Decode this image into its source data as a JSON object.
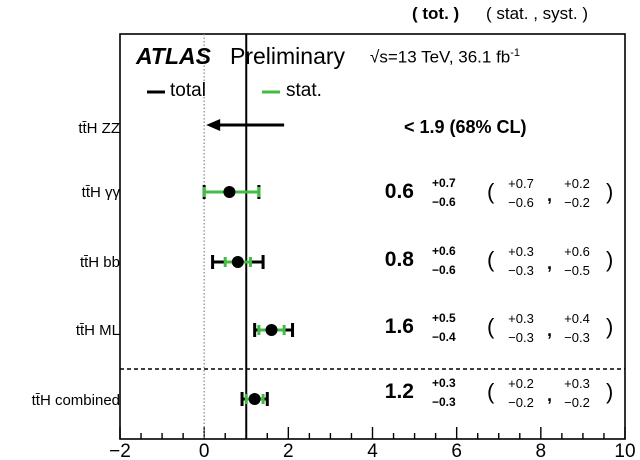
{
  "header": {
    "tot_label": "( tot. )",
    "statsyst_label": "( stat. , syst. )"
  },
  "experiment": {
    "atlas": "ATLAS",
    "status": "Preliminary",
    "sqrt_s": "√s",
    "energy_lumi": "=13 TeV, 36.1 fb",
    "lumi_exp": "-1"
  },
  "legend": {
    "total": "total",
    "stat": "stat."
  },
  "colors": {
    "total": "#000000",
    "stat": "#44bb44"
  },
  "rows": [
    {
      "label": "tt̄H ZZ",
      "limit": "< 1.9 (68% CL)"
    },
    {
      "label": "tt̄H γγ",
      "value": "0.6",
      "tot_up": "+0.7",
      "tot_dn": "−0.6",
      "stat_up": "+0.7",
      "stat_dn": "−0.6",
      "syst_up": "+0.2",
      "syst_dn": "−0.2"
    },
    {
      "label": "tt̄H bb",
      "value": "0.8",
      "tot_up": "+0.6",
      "tot_dn": "−0.6",
      "stat_up": "+0.3",
      "stat_dn": "−0.3",
      "syst_up": "+0.6",
      "syst_dn": "−0.5"
    },
    {
      "label": "tt̄H ML",
      "value": "1.6",
      "tot_up": "+0.5",
      "tot_dn": "−0.4",
      "stat_up": "+0.3",
      "stat_dn": "−0.3",
      "syst_up": "+0.4",
      "syst_dn": "−0.3"
    },
    {
      "label": "tt̄H combined",
      "value": "1.2",
      "tot_up": "+0.3",
      "tot_dn": "−0.3",
      "stat_up": "+0.2",
      "stat_dn": "−0.2",
      "syst_up": "+0.3",
      "syst_dn": "−0.2"
    }
  ],
  "chart_data": {
    "type": "scatter",
    "orientation": "horizontal",
    "categories": [
      "tt̄H ZZ",
      "tt̄H γγ",
      "tt̄H bb",
      "tt̄H ML",
      "tt̄H combined"
    ],
    "xlim": [
      -2,
      10
    ],
    "xticks": [
      "−2",
      "0",
      "2",
      "4",
      "6",
      "8",
      "10"
    ],
    "xtick_values": [
      -2,
      0,
      2,
      4,
      6,
      8,
      10
    ],
    "reference_lines": [
      {
        "x": 0,
        "style": "dotted"
      },
      {
        "x": 1,
        "style": "solid"
      }
    ],
    "series": [
      {
        "name": "total",
        "points": [
          {
            "category": "tt̄H ZZ",
            "upper_limit": 1.9
          },
          {
            "category": "tt̄H γγ",
            "value": 0.6,
            "err_up": 0.7,
            "err_down": 0.6
          },
          {
            "category": "tt̄H bb",
            "value": 0.8,
            "err_up": 0.6,
            "err_down": 0.6
          },
          {
            "category": "tt̄H ML",
            "value": 1.6,
            "err_up": 0.5,
            "err_down": 0.4
          },
          {
            "category": "tt̄H combined",
            "value": 1.2,
            "err_up": 0.3,
            "err_down": 0.3
          }
        ]
      },
      {
        "name": "stat.",
        "points": [
          {
            "category": "tt̄H γγ",
            "value": 0.6,
            "err_up": 0.7,
            "err_down": 0.6
          },
          {
            "category": "tt̄H bb",
            "value": 0.8,
            "err_up": 0.3,
            "err_down": 0.3
          },
          {
            "category": "tt̄H ML",
            "value": 1.6,
            "err_up": 0.3,
            "err_down": 0.3
          },
          {
            "category": "tt̄H combined",
            "value": 1.2,
            "err_up": 0.2,
            "err_down": 0.2
          }
        ]
      }
    ],
    "legend": "top-left",
    "grid": false
  }
}
